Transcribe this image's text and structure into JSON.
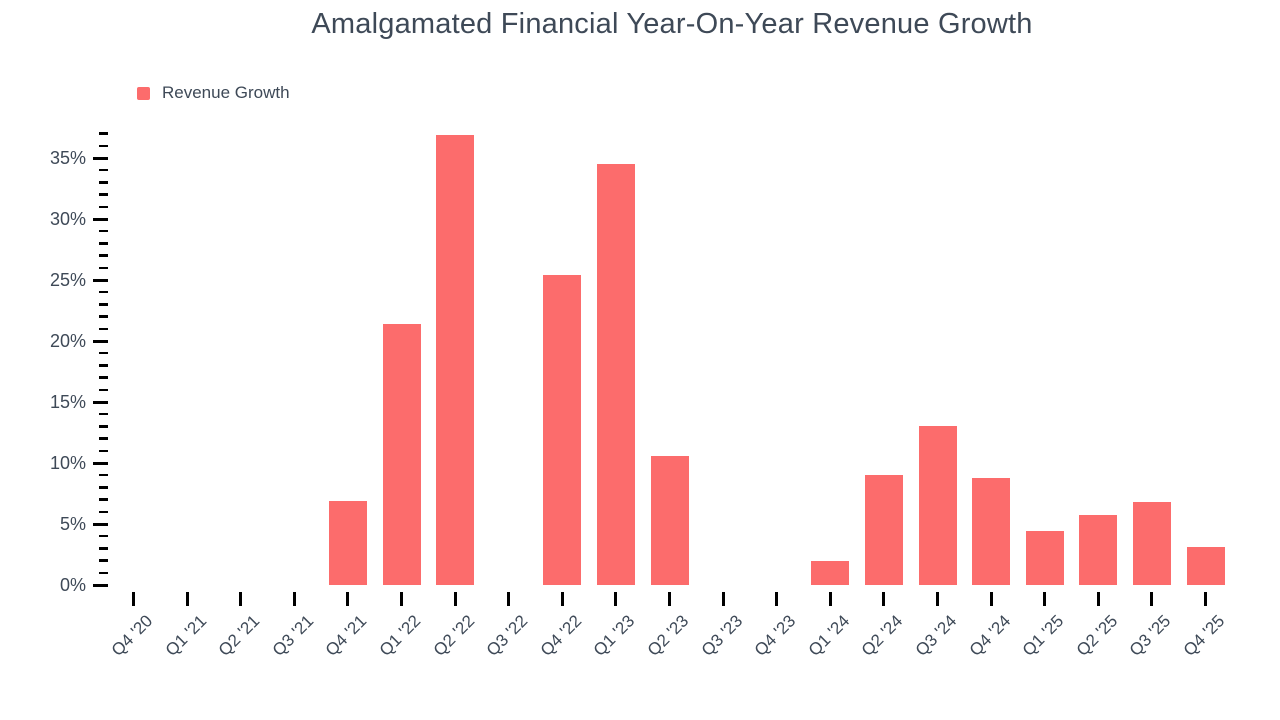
{
  "title": "Amalgamated Financial Year-On-Year Revenue Growth",
  "legend": {
    "label": "Revenue Growth",
    "swatch_color": "#fc6c6c"
  },
  "colors": {
    "bar": "#fc6c6c",
    "text": "#3e4957",
    "tick": "#000000"
  },
  "chart_data": {
    "type": "bar",
    "title": "Amalgamated Financial Year-On-Year Revenue Growth",
    "xlabel": "",
    "ylabel": "",
    "value_suffix": "%",
    "categories": [
      "Q4 '20",
      "Q1 '21",
      "Q2 '21",
      "Q3 '21",
      "Q4 '21",
      "Q1 '22",
      "Q2 '22",
      "Q3 '22",
      "Q4 '22",
      "Q1 '23",
      "Q2 '23",
      "Q3 '23",
      "Q4 '23",
      "Q1 '24",
      "Q2 '24",
      "Q3 '24",
      "Q4 '24",
      "Q1 '25",
      "Q2 '25",
      "Q3 '25",
      "Q4 '25"
    ],
    "series": [
      {
        "name": "Revenue Growth",
        "values": [
          0,
          0,
          0,
          0,
          6.9,
          21.4,
          36.9,
          0,
          25.4,
          34.5,
          10.6,
          0,
          0,
          2.0,
          9.0,
          13.0,
          8.8,
          4.4,
          5.7,
          6.8,
          3.1
        ]
      }
    ],
    "ylim": [
      0,
      37
    ],
    "y_major_tick_labels": [
      "0%",
      "5%",
      "10%",
      "15%",
      "20%",
      "25%",
      "30%",
      "35%"
    ],
    "y_major_step": 5,
    "y_minor_step": 1,
    "grid": false,
    "legend_position": "top-left"
  }
}
